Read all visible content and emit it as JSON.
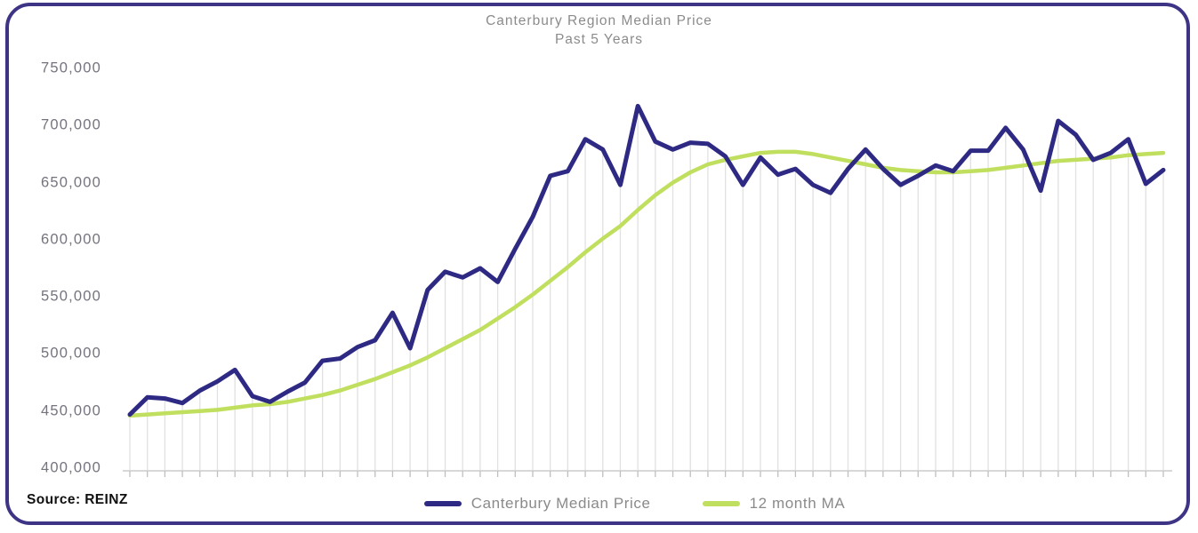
{
  "frame": {
    "border_color": "#3e3486"
  },
  "source": {
    "label": "Source: REINZ"
  },
  "colors": {
    "median_line": "#2e2a84",
    "ma_line": "#c0df5e",
    "grid_line": "#e1e1e1",
    "axis_line": "#cccccc",
    "title_text": "#8b8b8b",
    "tick_text": "#74747e"
  },
  "chart_data": {
    "type": "line",
    "title": "Canterbury Region Median Price",
    "subtitle": "Past 5 Years",
    "xlabel": "",
    "ylabel": "",
    "ylim": [
      400000,
      750000
    ],
    "ytick_step": 50000,
    "y_tick_values": [
      750000,
      700000,
      650000,
      600000,
      550000,
      500000,
      450000,
      400000
    ],
    "y_tick_labels": [
      "750,000",
      "700,000",
      "650,000",
      "600,000",
      "550,000",
      "500,000",
      "450,000",
      "400,000"
    ],
    "x_tick_labels_visible": false,
    "points_per_series": 60,
    "grid": "vertical drop lines from median series to x-axis, tick marks below axis",
    "legend_position": "bottom-center",
    "series": [
      {
        "name": "Canterbury Median Price",
        "color": "#2e2a84",
        "values": [
          447000,
          462000,
          461000,
          457000,
          468000,
          476000,
          486000,
          463000,
          458000,
          467000,
          475000,
          494000,
          496000,
          506000,
          512000,
          536000,
          505000,
          556000,
          572000,
          567000,
          575000,
          563000,
          592000,
          620000,
          656000,
          660000,
          688000,
          679000,
          648000,
          717000,
          686000,
          679000,
          685000,
          684000,
          673000,
          648000,
          672000,
          657000,
          662000,
          648000,
          641000,
          662000,
          679000,
          662000,
          648000,
          656000,
          665000,
          660000,
          678000,
          678000,
          698000,
          679000,
          643000,
          704000,
          692000,
          670000,
          676000,
          688000,
          649000,
          661000
        ]
      },
      {
        "name": "12 month MA",
        "color": "#c0df5e",
        "values": [
          446000,
          447000,
          448000,
          449000,
          450000,
          451000,
          453000,
          455000,
          456000,
          458000,
          461000,
          464000,
          468000,
          473000,
          478000,
          484000,
          490000,
          497000,
          505000,
          513000,
          521000,
          531000,
          541000,
          552000,
          564000,
          576000,
          589000,
          601000,
          612000,
          626000,
          639000,
          650000,
          659000,
          666000,
          670000,
          673000,
          676000,
          677000,
          677000,
          675000,
          672000,
          669000,
          666000,
          663000,
          661000,
          660000,
          659000,
          659000,
          660000,
          661000,
          663000,
          665000,
          667000,
          669000,
          670000,
          671000,
          672000,
          674000,
          675000,
          676000
        ]
      }
    ]
  }
}
